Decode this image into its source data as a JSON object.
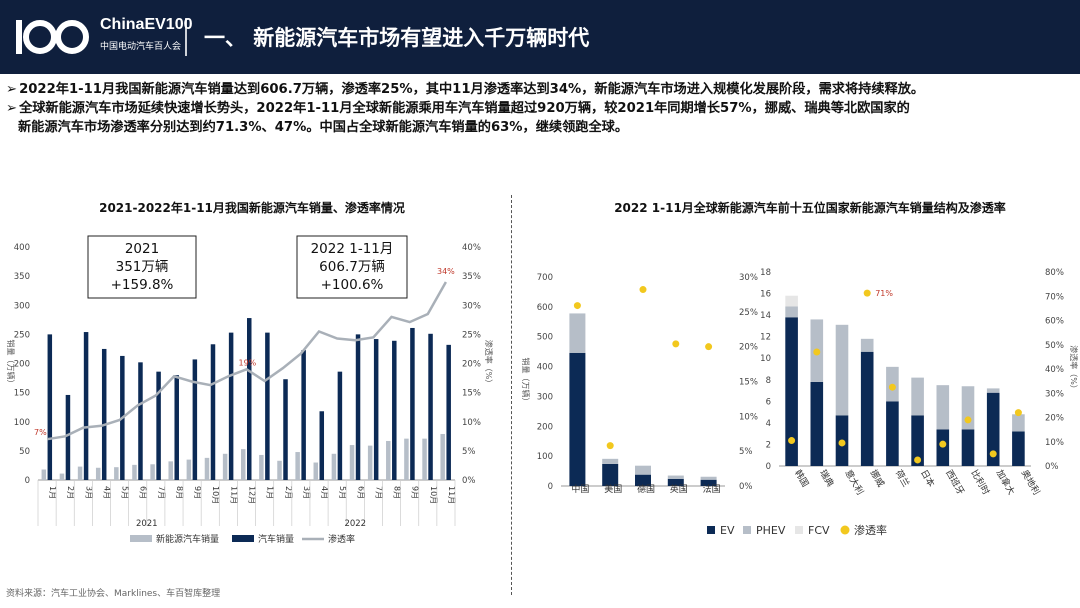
{
  "header": {
    "brand": "ChinaEV100",
    "brand_sub": "中国电动汽车百人会",
    "title": "一、 新能源汽车市场有望进入千万辆时代"
  },
  "bullets": [
    "2022年1-11月我国新能源汽车销量达到606.7万辆，渗透率25%，其中11月渗透率达到34%，新能源汽车市场进入规模化发展阶段，需求将持续释放。",
    "全球新能源汽车市场延续快速增长势头，2022年1-11月全球新能源乘用车汽车销量超过920万辆，较2021年同期增长57%，挪威、瑞典等北欧国家的",
    "新能源汽车市场渗透率分别达到约71.3%、47%。中国占全球新能源汽车销量的63%，继续领跑全球。"
  ],
  "source": "资料来源：汽车工业协会、Marklines、车百智库整理",
  "colors": {
    "header_bg": "#0f1f3d",
    "navy": "#0c2a55",
    "light": "#b6bec8",
    "line": "#a9b0b8",
    "fcv": "#e6e6e6",
    "dot": "#f2c81e",
    "red": "#c0392b"
  },
  "chart_data": [
    {
      "type": "bar",
      "title": "2021-2022年1-11月我国新能源汽车销量、渗透率情况",
      "ylabel": "销量（万辆）",
      "y2label": "渗透率（%）",
      "ylim": [
        0,
        400
      ],
      "yticks": [
        "0",
        "50",
        "100",
        "150",
        "200",
        "250",
        "300",
        "350",
        "400"
      ],
      "y2lim": [
        0,
        40
      ],
      "y2ticks": [
        "0%",
        "5%",
        "10%",
        "15%",
        "20%",
        "25%",
        "30%",
        "35%",
        "40%"
      ],
      "categories": [
        "1月",
        "2月",
        "3月",
        "4月",
        "5月",
        "6月",
        "7月",
        "8月",
        "9月",
        "10月",
        "11月",
        "12月",
        "1月",
        "2月",
        "3月",
        "4月",
        "5月",
        "6月",
        "7月",
        "8月",
        "9月",
        "10月",
        "11月"
      ],
      "groups": [
        "2021",
        "2022"
      ],
      "series": [
        {
          "name": "新能源汽车销量",
          "values": [
            18,
            11,
            23,
            21,
            22,
            26,
            27,
            32,
            35,
            38,
            45,
            53,
            43,
            33,
            48,
            30,
            45,
            60,
            59,
            67,
            71,
            71,
            79
          ]
        },
        {
          "name": "汽车销量",
          "values": [
            250,
            146,
            254,
            225,
            213,
            202,
            186,
            180,
            207,
            233,
            253,
            278,
            253,
            173,
            223,
            118,
            186,
            250,
            242,
            239,
            261,
            251,
            232
          ]
        },
        {
          "name": "渗透率",
          "values": [
            7,
            7.5,
            9,
            9.3,
            10.3,
            12.8,
            14.5,
            17.8,
            16.9,
            16.3,
            17.8,
            19,
            17,
            19.2,
            21.7,
            25.5,
            24.3,
            24,
            24.5,
            28,
            27.1,
            28.5,
            34
          ]
        }
      ],
      "annotations": {
        "first_rate": "7%",
        "mid_rate": "19%",
        "last_rate": "34%"
      },
      "box_2021": {
        "year": "2021",
        "sales": "351万辆",
        "growth": "+159.8%"
      },
      "box_2022": {
        "year": "2022 1-11月",
        "sales": "606.7万辆",
        "growth": "+100.6%"
      },
      "legend": [
        "新能源汽车销量",
        "汽车销量",
        "渗透率"
      ]
    },
    {
      "type": "bar",
      "title": "2022 1-11月全球新能源汽车前十五位国家新能源汽车销量结构及渗透率",
      "left": {
        "ylabel": "销量（万辆）",
        "ylim": [
          0,
          700
        ],
        "yticks": [
          "0",
          "100",
          "200",
          "300",
          "400",
          "500",
          "600",
          "700"
        ],
        "y2lim": [
          0,
          30
        ],
        "y2ticks": [
          "0%",
          "5%",
          "10%",
          "15%",
          "20%",
          "25%",
          "30%"
        ],
        "categories": [
          "中国",
          "美国",
          "德国",
          "英国",
          "法国"
        ],
        "EV": [
          446,
          74,
          38,
          24,
          21
        ],
        "PHEV": [
          132,
          17,
          30,
          11,
          10
        ],
        "FCV": [
          0,
          0,
          0,
          0,
          0
        ],
        "rate": [
          25.9,
          5.8,
          28.2,
          20.4,
          20
        ]
      },
      "right": {
        "y2label": "渗透率（%）",
        "ylim": [
          0,
          18
        ],
        "yticks": [
          "0",
          "2",
          "4",
          "6",
          "8",
          "10",
          "12",
          "14",
          "16",
          "18"
        ],
        "y2lim": [
          0,
          80
        ],
        "y2ticks": [
          "0%",
          "10%",
          "20%",
          "30%",
          "40%",
          "50%",
          "60%",
          "70%",
          "80%"
        ],
        "categories": [
          "韩国",
          "瑞典",
          "意大利",
          "挪威",
          "荷兰",
          "日本",
          "西班牙",
          "比利时",
          "加拿大",
          "奥地利"
        ],
        "EV": [
          13.8,
          7.8,
          4.7,
          10.6,
          6,
          4.7,
          3.4,
          3.4,
          6.8,
          3.2
        ],
        "PHEV": [
          1,
          5.8,
          8.4,
          1.2,
          3.2,
          3.5,
          4.1,
          4,
          0.4,
          1.6
        ],
        "FCV": [
          1,
          0,
          0,
          0,
          0,
          0,
          0,
          0,
          0,
          0
        ],
        "rate": [
          10.5,
          47,
          9.5,
          71.3,
          32.5,
          2.5,
          9,
          19,
          5,
          22
        ],
        "rate_label": "71%"
      },
      "legend": [
        "EV",
        "PHEV",
        "FCV",
        "渗透率"
      ]
    }
  ]
}
